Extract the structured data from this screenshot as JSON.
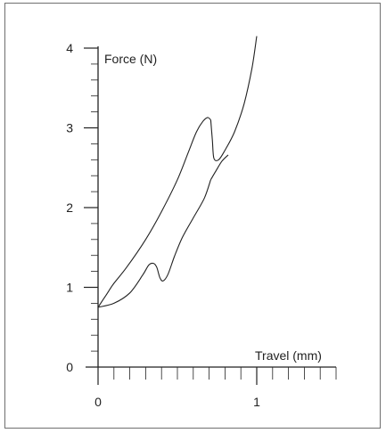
{
  "chart_data": {
    "type": "line",
    "title": "",
    "xlabel": "Travel (mm)",
    "ylabel": "Force (N)",
    "xlim": [
      0,
      1.5
    ],
    "ylim": [
      0,
      4
    ],
    "x_ticks": [
      {
        "value": 0,
        "label": "0"
      },
      {
        "value": 1,
        "label": "1"
      }
    ],
    "y_ticks": [
      {
        "value": 0,
        "label": "0"
      },
      {
        "value": 1,
        "label": "1"
      },
      {
        "value": 2,
        "label": "2"
      },
      {
        "value": 3,
        "label": "3"
      },
      {
        "value": 4,
        "label": "4"
      }
    ],
    "x_minor_step": 0.1,
    "y_minor_step": 0.2,
    "grid": false,
    "legend": "none",
    "line_color": "#222222",
    "series": [
      {
        "segment": "upper",
        "x": [
          0.0,
          0.05,
          0.1,
          0.18,
          0.3,
          0.4,
          0.5,
          0.57,
          0.62,
          0.66,
          0.69,
          0.71
        ],
        "y": [
          0.75,
          0.9,
          1.05,
          1.25,
          1.6,
          1.95,
          2.35,
          2.7,
          2.95,
          3.08,
          3.13,
          3.1
        ]
      },
      {
        "segment": "lower",
        "x": [
          0.0,
          0.1,
          0.2,
          0.28,
          0.32,
          0.35,
          0.37,
          0.39,
          0.41,
          0.44,
          0.48,
          0.53,
          0.6,
          0.67,
          0.71
        ],
        "y": [
          0.75,
          0.8,
          0.93,
          1.15,
          1.28,
          1.3,
          1.25,
          1.12,
          1.08,
          1.16,
          1.38,
          1.62,
          1.87,
          2.12,
          2.35
        ]
      },
      {
        "segment": "return",
        "x": [
          0.71,
          0.72,
          0.73,
          0.76,
          0.8,
          0.86,
          0.92,
          0.97,
          1.0
        ],
        "y": [
          3.1,
          2.85,
          2.62,
          2.6,
          2.72,
          2.95,
          3.3,
          3.75,
          4.15
        ]
      },
      {
        "segment": "lower-right",
        "x": [
          0.71,
          0.74,
          0.78,
          0.82
        ],
        "y": [
          2.35,
          2.45,
          2.58,
          2.66
        ]
      }
    ]
  }
}
